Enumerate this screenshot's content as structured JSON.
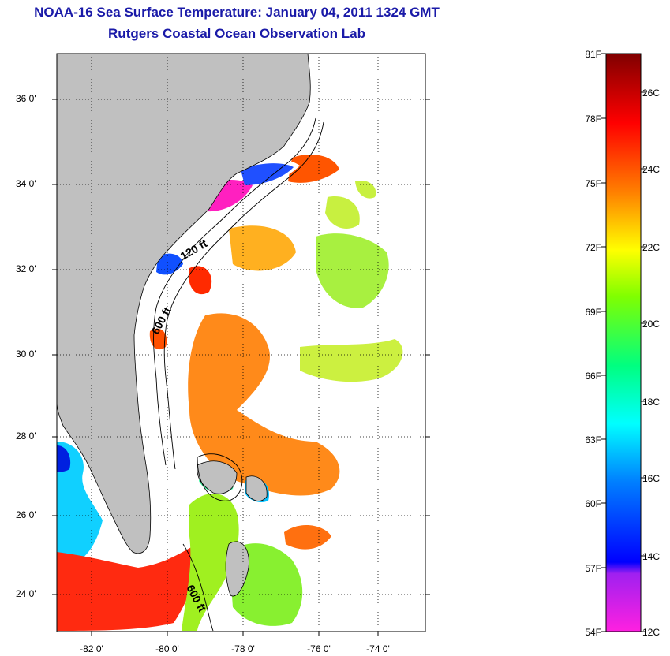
{
  "header": {
    "title": "NOAA-16 Sea Surface Temperature:  January 04, 2011 1324 GMT",
    "subtitle": "Rutgers Coastal Ocean Observation Lab"
  },
  "map": {
    "lat_labels": [
      "36 0'",
      "34 0'",
      "32 0'",
      "30 0'",
      "28 0'",
      "26 0'",
      "24 0'"
    ],
    "lon_labels": [
      "-82 0'",
      "-80 0'",
      "-78 0'",
      "-76 0'",
      "-74 0'"
    ],
    "depth_labels": [
      "120 ft",
      "600 ft",
      "600 ft"
    ],
    "colors": {
      "land": "#c0c0c0",
      "no_data": "#ffffff",
      "contour": "#000000"
    }
  },
  "colorbar": {
    "fahrenheit": [
      "81F",
      "78F",
      "75F",
      "72F",
      "69F",
      "66F",
      "63F",
      "60F",
      "57F",
      "54F"
    ],
    "celsius": [
      "26C",
      "24C",
      "22C",
      "20C",
      "18C",
      "16C",
      "14C",
      "12C"
    ],
    "gradient_colors": [
      "#800000",
      "#ff0000",
      "#ff8000",
      "#ffff00",
      "#80ff00",
      "#00ff80",
      "#00ffff",
      "#0080ff",
      "#0000ff",
      "#8000ff",
      "#ff00ff"
    ]
  }
}
